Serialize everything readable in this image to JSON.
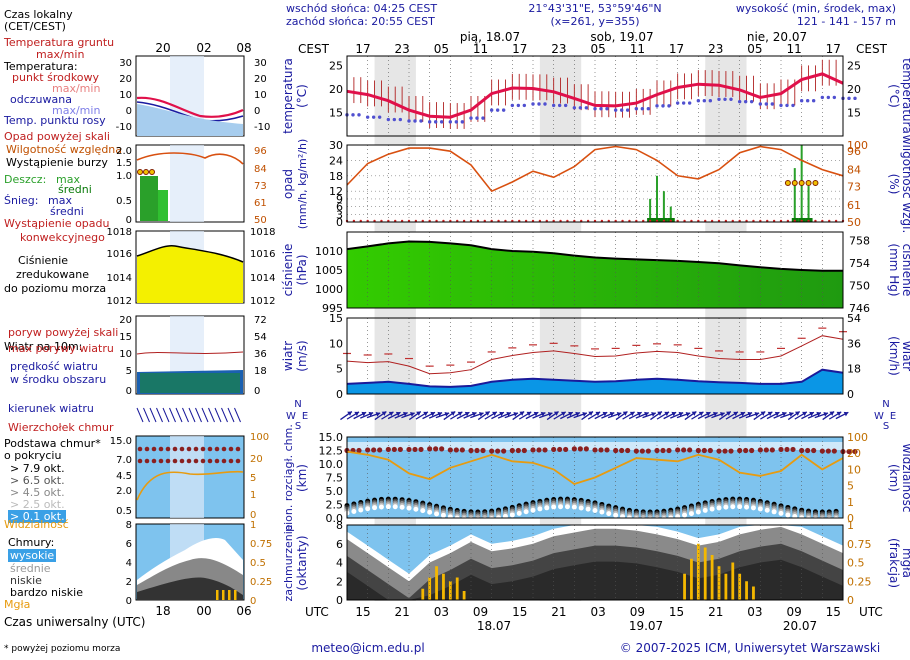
{
  "header": {
    "sunrise": "wschód słońca: 04:25 CEST",
    "sunset": "zachód słońca: 20:55 CEST",
    "coords": "21°43'31\"E, 53°59'46\"N",
    "grid": "(x=261, y=355)",
    "elev_label": "wysokość (min, środek, max)",
    "elev_values": "121 - 141 - 157 m",
    "tz_left": "CEST",
    "tz_right": "CEST",
    "tz_bottom_left": "UTC",
    "tz_bottom_right": "UTC",
    "day_labels": [
      "pią, 18.07",
      "sob, 19.07",
      "nie, 20.07"
    ],
    "cest_ticks": [
      "17",
      "23",
      "05",
      "11",
      "17",
      "23",
      "05",
      "11",
      "17",
      "23",
      "05",
      "11",
      "17"
    ],
    "utc_ticks": [
      "15",
      "21",
      "03",
      "09",
      "15",
      "21",
      "03",
      "09",
      "15",
      "21",
      "03",
      "09",
      "15"
    ],
    "utc_dates": [
      "18.07",
      "19.07",
      "20.07"
    ]
  },
  "legend": {
    "local_time": "Czas lokalny",
    "local_time2": "(CET/CEST)",
    "small_ticks_top": [
      "20",
      "02",
      "08"
    ],
    "small_ticks_bottom": [
      "18",
      "00",
      "06"
    ],
    "soil_temp": "Temperatura gruntu",
    "soil_temp2": "max/min",
    "temperature": "Temperatura:",
    "midpoint": "punkt środkowy",
    "maxmin": "max/min",
    "feels": "odczuwana",
    "feels_maxmin": "max/min",
    "dewpoint": "Temp. punktu rosy",
    "precip_above": "Opad powyżej skali",
    "humidity": "Wilgotność względna",
    "storm": "Wystąpienie burzy",
    "rain": "Deszcz:",
    "rain_max": "max",
    "rain_mean": "średni",
    "snow": "Śnieg:",
    "snow_max": "max",
    "snow_mean": "średni",
    "conv1": "Wystąpienie opadu",
    "conv2": "konwekcyjnego",
    "pressure1": "Ciśnienie",
    "pressure2": "zredukowane",
    "pressure3": "do poziomu morza",
    "wind": "Wiatr na 10m:",
    "gust_above": "poryw powyżej skali",
    "gust_max": "max porywy wiatru",
    "wind_speed1": "prędkość wiatru",
    "wind_speed2": "w środku obszaru",
    "wind_dir": "kierunek wiatru",
    "cloud_top": "Wierzchołek chmur",
    "cloud_base1": "Podstawa chmur*",
    "cloud_base2": "o pokryciu",
    "okt": [
      "> 7.9 okt.",
      "> 6.5 okt.",
      "> 4.5 okt.",
      "> 2.5 okt.",
      "> 0.1 okt."
    ],
    "visibility": "Widzialność",
    "clouds": "Chmury:",
    "high": "wysokie",
    "mid": "średnie",
    "low": "niskie",
    "vlow": "bardzo niskie",
    "fog": "Mgła",
    "utc_label": "Czas uniwersalny (UTC)",
    "footnote": "* powyżej poziomu morza"
  },
  "axes": {
    "temp_left": "temperatura",
    "temp_left2": "(°C)",
    "temp_right": "temperatura",
    "temp_right2": "(°C)",
    "prec_left1": "opad",
    "prec_left2": "(mm/h, kg/m²/h)",
    "prec_right1": "wilgotność wzgl.",
    "prec_right2": "(%)",
    "pres_left1": "ciśnienie",
    "pres_left2": "(hPa)",
    "pres_right1": "ciśnienie",
    "pres_right2": "(mm Hg)",
    "wind_left1": "wiatr",
    "wind_left2": "(m/s)",
    "wind_right1": "wiatr",
    "wind_right2": "(km/h)",
    "vis_left1": "pion. rozciągł. chm.",
    "vis_left2": "(km)",
    "vis_right1": "widzialność",
    "vis_right2": "(km)",
    "cloud_left1": "zachmurzenie",
    "cloud_left2": "(oktanty)",
    "cloud_right1": "mgła",
    "cloud_right2": "(frakcja)",
    "compass": [
      "N",
      "W",
      "E",
      "S"
    ]
  },
  "footer": {
    "email": "meteo@icm.edu.pl",
    "copyright": "© 2007-2025 ICM, Uniwersytet Warszawski"
  },
  "chart_data": [
    {
      "type": "line",
      "name": "temperatura",
      "ylim": [
        10,
        27
      ],
      "left_ticks": [
        15,
        20,
        25
      ],
      "right_ticks": [
        15,
        20,
        25
      ],
      "x_hours": [
        0,
        3,
        6,
        9,
        12,
        15,
        18,
        21,
        24,
        27,
        30,
        33,
        36,
        39,
        42,
        45,
        48,
        51,
        54,
        57,
        60,
        63,
        66,
        69,
        72
      ],
      "temperature": [
        19.5,
        18.8,
        17.5,
        15.5,
        14.2,
        14.0,
        15.5,
        19.0,
        20.2,
        20.1,
        19.4,
        18.0,
        16.5,
        16.4,
        17.0,
        18.8,
        20.3,
        21.0,
        20.8,
        19.8,
        18.2,
        19.0,
        22.0,
        23.2,
        21.2
      ],
      "dewpoint": [
        14.5,
        14.0,
        13.5,
        13.2,
        13.0,
        13.0,
        13.8,
        15.5,
        16.5,
        16.8,
        16.5,
        16.0,
        15.8,
        15.5,
        15.8,
        16.4,
        17.0,
        17.5,
        17.8,
        17.3,
        16.8,
        16.5,
        17.5,
        18.2,
        18.0
      ]
    },
    {
      "type": "bar",
      "name": "opad",
      "ylim": [
        0,
        30
      ],
      "left_ticks": [
        0,
        3,
        6,
        9,
        12,
        18,
        24,
        30
      ],
      "right_ticks": [
        50,
        61,
        73,
        84,
        96,
        100
      ],
      "humidity_pct": [
        74,
        88,
        94,
        98,
        98,
        96,
        87,
        70,
        76,
        83,
        79,
        86,
        97,
        99,
        97,
        90,
        80,
        78,
        84,
        95,
        99,
        97,
        90,
        84,
        80
      ],
      "rain_hours": [
        44,
        45,
        46,
        47,
        65,
        66,
        67
      ],
      "rain_max": [
        9,
        18,
        12,
        6,
        21,
        30,
        14
      ]
    },
    {
      "type": "area",
      "name": "ciśnienie",
      "ylim": [
        995,
        1015
      ],
      "left_ticks": [
        995,
        1000,
        1005,
        1010
      ],
      "right_ticks": [
        746,
        750,
        754,
        758
      ],
      "pressure_hpa": [
        1010.5,
        1011.2,
        1012.0,
        1012.5,
        1012.4,
        1012.0,
        1011.5,
        1010.5,
        1010.0,
        1009.8,
        1009.4,
        1008.8,
        1008.3,
        1008.0,
        1007.8,
        1007.6,
        1007.4,
        1007.1,
        1006.8,
        1006.2,
        1005.7,
        1005.3,
        1005.0,
        1004.8,
        1004.8
      ]
    },
    {
      "type": "area",
      "name": "wiatr",
      "ylim": [
        0,
        15
      ],
      "left_ticks": [
        0,
        5,
        10,
        15
      ],
      "right_ticks": [
        0,
        18,
        36,
        54
      ],
      "wind_speed": [
        2.0,
        2.2,
        2.4,
        2.0,
        1.5,
        1.4,
        1.6,
        2.4,
        2.8,
        3.0,
        2.8,
        2.6,
        2.4,
        2.5,
        2.8,
        3.0,
        2.8,
        2.5,
        2.3,
        2.2,
        2.0,
        2.0,
        2.4,
        4.8,
        4.2
      ],
      "gust_max": [
        6.5,
        6.2,
        6.4,
        5.5,
        4.0,
        4.2,
        4.8,
        6.8,
        7.6,
        8.2,
        8.5,
        8.0,
        7.4,
        7.5,
        8.1,
        8.4,
        8.2,
        7.5,
        7.0,
        6.8,
        6.8,
        7.5,
        9.5,
        11.5,
        10.8
      ]
    },
    {
      "type": "scatter",
      "name": "widzialność",
      "ylim": [
        0,
        15
      ],
      "left_ticks": [
        0.0,
        2.5,
        5.0,
        7.5,
        10.0,
        12.5,
        15.0
      ],
      "right_ticks": [
        0,
        1,
        5,
        10,
        20,
        100
      ],
      "cloud_top_km": [
        12.5,
        12.6,
        12.7,
        12.7,
        12.8,
        12.6,
        12.5,
        12.4,
        12.5,
        12.6,
        12.7,
        12.8,
        12.6,
        12.5,
        12.4,
        12.5,
        12.6,
        12.5,
        12.4,
        12.5,
        12.6,
        12.7,
        12.5,
        12.4,
        12.3
      ],
      "visibility_index": [
        0.82,
        0.78,
        0.72,
        0.55,
        0.48,
        0.62,
        0.7,
        0.78,
        0.7,
        0.68,
        0.6,
        0.42,
        0.5,
        0.62,
        0.74,
        0.72,
        0.7,
        0.78,
        0.72,
        0.56,
        0.52,
        0.58,
        0.78,
        0.6,
        0.74
      ]
    },
    {
      "type": "area",
      "name": "zachmurzenie",
      "ylim": [
        0,
        8
      ],
      "left_ticks": [
        0,
        2,
        4,
        6,
        8
      ],
      "right_ticks": [
        0,
        0.25,
        0.5,
        0.75,
        1
      ],
      "cloud_cover": [
        6.5,
        5.0,
        3.5,
        2.0,
        4.0,
        5.0,
        6.2,
        5.2,
        5.5,
        6.0,
        6.8,
        7.2,
        7.6,
        7.6,
        7.4,
        7.0,
        6.5,
        5.8,
        6.2,
        7.0,
        7.5,
        7.8,
        7.0,
        6.0,
        5.0
      ],
      "fog_hours": [
        11,
        12,
        13,
        14,
        15,
        16,
        17,
        49,
        50,
        51,
        52,
        53,
        54,
        55,
        56,
        57,
        58,
        59
      ],
      "fog_values": [
        0.15,
        0.3,
        0.45,
        0.35,
        0.25,
        0.3,
        0.12,
        0.35,
        0.55,
        0.75,
        0.7,
        0.6,
        0.45,
        0.35,
        0.5,
        0.35,
        0.25,
        0.18
      ]
    }
  ]
}
